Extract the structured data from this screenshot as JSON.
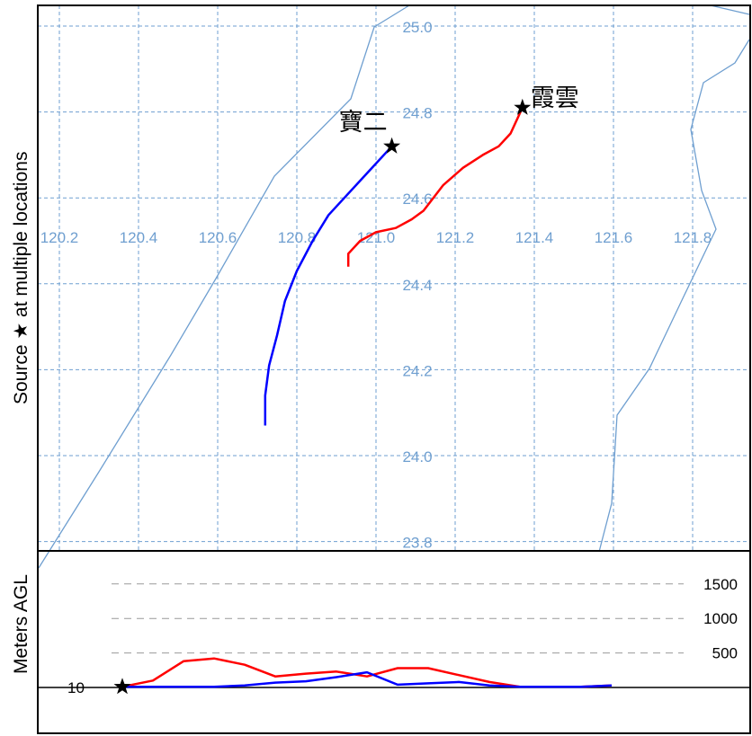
{
  "map": {
    "x_tick_labels": [
      "120.2",
      "120.4",
      "120.6",
      "120.8",
      "121.0",
      "121.2",
      "121.4",
      "121.6",
      "121.8"
    ],
    "y_tick_labels": [
      "25.0",
      "24.8",
      "24.6",
      "24.4",
      "24.2",
      "24.0",
      "23.8"
    ],
    "y_axis_label": "Source ★ at multiple locations",
    "sources": [
      {
        "label": "寶二",
        "lon": 121.04,
        "lat": 24.72,
        "color": "#0000ff"
      },
      {
        "label": "霞雲",
        "lon": 121.37,
        "lat": 24.81,
        "color": "#ff0000"
      }
    ],
    "trajectories": [
      {
        "color": "#0000ff",
        "points": [
          [
            121.04,
            24.72
          ],
          [
            120.98,
            24.66
          ],
          [
            120.92,
            24.6
          ],
          [
            120.88,
            24.56
          ],
          [
            120.84,
            24.5
          ],
          [
            120.8,
            24.43
          ],
          [
            120.77,
            24.36
          ],
          [
            120.75,
            24.28
          ],
          [
            120.73,
            24.21
          ],
          [
            120.72,
            24.14
          ],
          [
            120.72,
            24.07
          ]
        ]
      },
      {
        "color": "#ff0000",
        "points": [
          [
            121.37,
            24.81
          ],
          [
            121.34,
            24.75
          ],
          [
            121.31,
            24.72
          ],
          [
            121.27,
            24.7
          ],
          [
            121.22,
            24.67
          ],
          [
            121.17,
            24.63
          ],
          [
            121.12,
            24.57
          ],
          [
            121.09,
            24.55
          ],
          [
            121.05,
            24.53
          ],
          [
            121.0,
            24.52
          ],
          [
            120.96,
            24.5
          ],
          [
            120.93,
            24.47
          ],
          [
            120.93,
            24.44
          ]
        ]
      }
    ]
  },
  "height_panel": {
    "y_axis_label": "Meters AGL",
    "reference_labels": [
      "1500",
      "1000",
      "500"
    ],
    "reference_values": [
      1500,
      1000,
      500
    ],
    "source_height_label": "10",
    "trajectories": [
      {
        "color": "#ff0000",
        "values": [
          10,
          100,
          380,
          420,
          330,
          160,
          200,
          230,
          160,
          280,
          280,
          180,
          80,
          10,
          10,
          10,
          30
        ]
      },
      {
        "color": "#0000ff",
        "values": [
          10,
          10,
          10,
          10,
          30,
          70,
          90,
          150,
          220,
          40,
          60,
          80,
          30,
          10,
          10,
          10,
          30
        ]
      }
    ]
  }
}
